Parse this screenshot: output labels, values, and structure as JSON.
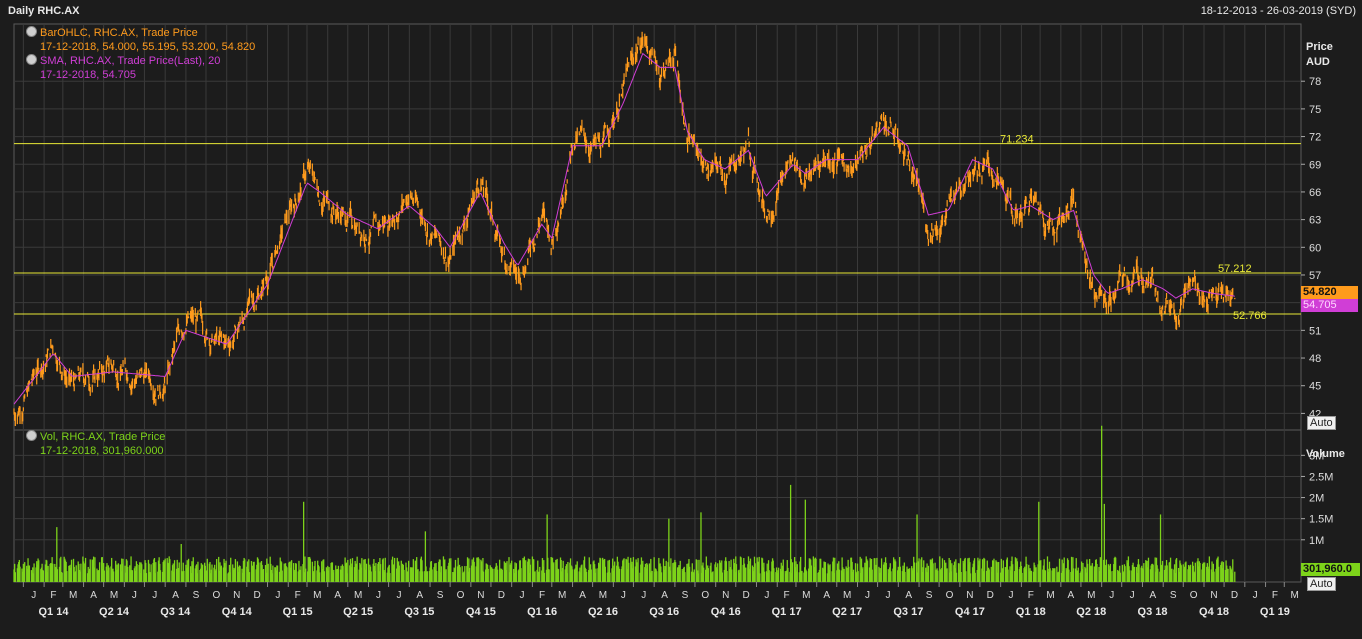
{
  "header": {
    "title": "Daily RHC.AX",
    "date_range": "18-12-2013 - 26-03-2019 (SYD)"
  },
  "legend": {
    "ohlc_line1": "BarOHLC, RHC.AX, Trade Price",
    "ohlc_line2": "17-12-2018, 54.000, 55.195, 53.200, 54.820",
    "sma_line1": "SMA, RHC.AX, Trade Price(Last), 20",
    "sma_line2": "17-12-2018, 54.705",
    "vol_line1": "Vol, RHC.AX, Trade Price",
    "vol_line2": "17-12-2018, 301,960.000"
  },
  "buttons": {
    "auto_label": "Auto"
  },
  "tags": {
    "last_price": "54.820",
    "last_sma": "54.705",
    "last_volume": "301,960.0"
  },
  "colors": {
    "price": "#ff9b1c",
    "sma": "#d03ed6",
    "volume": "#7dd31a",
    "hline": "#e8e836",
    "grid": "#3a3a3a"
  },
  "chart_data": [
    {
      "type": "line",
      "title": "",
      "ylabel": "Price AUD",
      "ylabel_lines": [
        "Price",
        "AUD"
      ],
      "ylim": [
        40.2,
        84.2
      ],
      "y_ticks": [
        42,
        45,
        48,
        51,
        54,
        57,
        60,
        63,
        66,
        69,
        72,
        75,
        78
      ],
      "grid": true,
      "x": [
        "2013-12-18",
        "2014-02-15",
        "2014-03-15",
        "2014-05-15",
        "2014-08-01",
        "2014-09-01",
        "2014-11-01",
        "2015-01-01",
        "2015-03-01",
        "2015-03-20",
        "2015-05-01",
        "2015-06-15",
        "2015-08-01",
        "2015-09-10",
        "2015-10-01",
        "2015-11-15",
        "2015-12-20",
        "2016-01-10",
        "2016-02-15",
        "2016-03-01",
        "2016-04-01",
        "2016-05-15",
        "2016-06-15",
        "2016-07-15",
        "2016-08-10",
        "2016-09-01",
        "2016-09-20",
        "2016-10-15",
        "2016-11-15",
        "2016-12-20",
        "2017-01-15",
        "2017-02-25",
        "2017-03-15",
        "2017-04-15",
        "2017-06-01",
        "2017-07-10",
        "2017-08-15",
        "2017-09-15",
        "2017-10-15",
        "2017-11-20",
        "2017-12-20",
        "2018-01-20",
        "2018-02-15",
        "2018-03-20",
        "2018-04-20",
        "2018-05-20",
        "2018-06-10",
        "2018-07-01",
        "2018-08-01",
        "2018-09-01",
        "2018-09-20",
        "2018-10-15",
        "2018-11-15",
        "2018-12-17"
      ],
      "series": [
        {
          "name": "BarOHLC, RHC.AX, Trade Price",
          "values": [
            42,
            49.5,
            45,
            47,
            45.5,
            52.5,
            49,
            57,
            68.5,
            66,
            63,
            61.5,
            66,
            61,
            59,
            67.5,
            59,
            56.5,
            64,
            60.5,
            72,
            70.5,
            77,
            83,
            79,
            81,
            72,
            69,
            68,
            71,
            64,
            70,
            67.5,
            70,
            69,
            74,
            70,
            62,
            64,
            70,
            68,
            63,
            65,
            62.5,
            65,
            55.5,
            54,
            56,
            57,
            55,
            54,
            56,
            54.5,
            54.82
          ]
        },
        {
          "name": "SMA, RHC.AX, Trade Price(Last), 20",
          "values": [
            43,
            48.5,
            46,
            46.5,
            46,
            51,
            49.5,
            56,
            67,
            66,
            63.5,
            62,
            64.5,
            62,
            60,
            66,
            60.5,
            58,
            62.5,
            61,
            71,
            71,
            75.5,
            81,
            79.5,
            79.5,
            72.5,
            69.5,
            68.5,
            70.5,
            65.5,
            69,
            68,
            69.5,
            69.5,
            73,
            71,
            63.5,
            64,
            69.5,
            68.5,
            64,
            64.5,
            63,
            64,
            57,
            55,
            55.5,
            56.5,
            55.5,
            54.5,
            55.5,
            55,
            54.705
          ]
        }
      ],
      "reference_lines": [
        71.234,
        57.212,
        52.766
      ]
    },
    {
      "type": "bar",
      "title": "",
      "ylabel": "Volume",
      "ylim": [
        0,
        3600000
      ],
      "y_ticks": [
        1000000,
        1500000,
        2000000,
        2500000,
        3000000
      ],
      "y_tick_labels": [
        "1M",
        "1.5M",
        "2M",
        "2.5M",
        "3M"
      ],
      "grid": true,
      "typical_volume": 450000,
      "spikes": [
        {
          "date": "2014-02-20",
          "value": 1300000
        },
        {
          "date": "2014-08-25",
          "value": 900000
        },
        {
          "date": "2015-02-24",
          "value": 1900000
        },
        {
          "date": "2015-08-25",
          "value": 1200000
        },
        {
          "date": "2016-02-23",
          "value": 1600000
        },
        {
          "date": "2016-08-23",
          "value": 1500000
        },
        {
          "date": "2016-10-10",
          "value": 1650000
        },
        {
          "date": "2017-02-21",
          "value": 2300000
        },
        {
          "date": "2017-03-15",
          "value": 1950000
        },
        {
          "date": "2017-08-29",
          "value": 1600000
        },
        {
          "date": "2018-02-27",
          "value": 1900000
        },
        {
          "date": "2018-06-01",
          "value": 3700000
        },
        {
          "date": "2018-06-05",
          "value": 1850000
        },
        {
          "date": "2018-08-28",
          "value": 1600000
        }
      ]
    }
  ],
  "x_axis": {
    "months": [
      "J",
      "F",
      "M",
      "A",
      "M",
      "J",
      "J",
      "A",
      "S",
      "O",
      "N",
      "D",
      "J",
      "F",
      "M",
      "A",
      "M",
      "J",
      "J",
      "A",
      "S",
      "O",
      "N",
      "D",
      "J",
      "F",
      "M",
      "A",
      "M",
      "J",
      "J",
      "A",
      "S",
      "O",
      "N",
      "D",
      "J",
      "F",
      "M",
      "A",
      "M",
      "J",
      "J",
      "A",
      "S",
      "O",
      "N",
      "D",
      "J",
      "F",
      "M",
      "A",
      "M",
      "J",
      "J",
      "A",
      "S",
      "O",
      "N",
      "D",
      "J",
      "F",
      "M"
    ],
    "quarters": [
      "Q1 14",
      "Q2 14",
      "Q3 14",
      "Q4 14",
      "Q1 15",
      "Q2 15",
      "Q3 15",
      "Q4 15",
      "Q1 16",
      "Q2 16",
      "Q3 16",
      "Q4 16",
      "Q1 17",
      "Q2 17",
      "Q3 17",
      "Q4 17",
      "Q1 18",
      "Q2 18",
      "Q3 18",
      "Q4 18",
      "Q1 19"
    ]
  }
}
